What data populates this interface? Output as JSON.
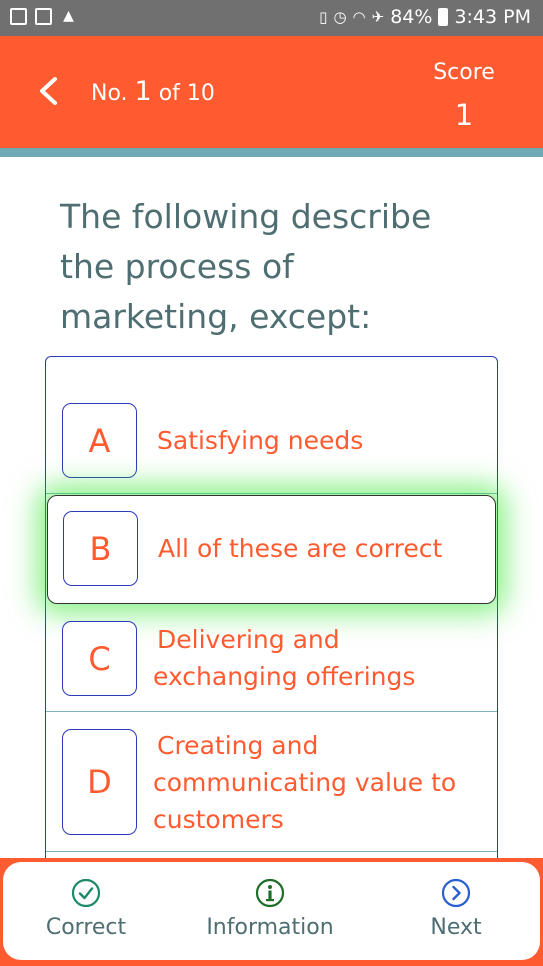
{
  "status_bar": {
    "battery": "84%",
    "time": "3:43 PM"
  },
  "header": {
    "question_prefix": "No.",
    "question_number": "1",
    "question_suffix": "of 10",
    "score_label": "Score",
    "score_value": "1"
  },
  "question": {
    "text": "The following describe the process of marketing, except:"
  },
  "options": [
    {
      "letter": "A",
      "text": "Satisfying needs"
    },
    {
      "letter": "B",
      "text": "All of these are correct"
    },
    {
      "letter": "C",
      "text": "Delivering and exchanging offerings"
    },
    {
      "letter": "D",
      "text": "Creating and communicating value to customers"
    }
  ],
  "selected_option": "B",
  "bottom_nav": {
    "correct_label": "Correct",
    "information_label": "Information",
    "next_label": "Next"
  },
  "colors": {
    "header": "#FF5B31",
    "stripe": "#6FA9B5",
    "question_text": "#4E6E72",
    "option_text": "#FF5B31",
    "option_border": "#2A3BB5",
    "correct_icon": "#1E8A6A",
    "info_icon": "#1E6E2A",
    "next_icon": "#2A5FD0"
  }
}
